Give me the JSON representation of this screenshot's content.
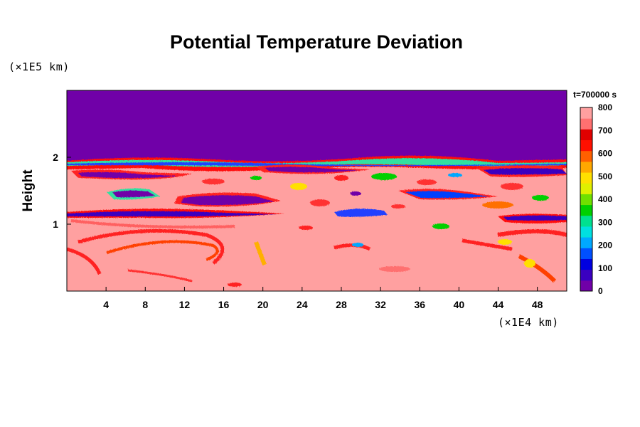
{
  "title": "Potential Temperature Deviation",
  "y_unit": "(×1E5 km)",
  "x_unit": "(×1E4 km)",
  "ylabel": "Height",
  "timestamp": "t=700000 s",
  "chart_data": {
    "type": "heatmap",
    "title": "Potential Temperature Deviation",
    "xlabel": "",
    "ylabel": "Height",
    "x_unit": "×1E4 km",
    "y_unit": "×1E5 km",
    "xlim": [
      0,
      51
    ],
    "ylim": [
      0,
      3
    ],
    "x_ticks": [
      4,
      8,
      12,
      16,
      20,
      24,
      28,
      32,
      36,
      40,
      44,
      48
    ],
    "y_ticks": [
      1,
      2
    ],
    "colorbar": {
      "min": 0,
      "max": 800,
      "ticks": [
        0,
        100,
        200,
        300,
        400,
        500,
        600,
        700,
        800
      ],
      "colors": [
        "#7000a8",
        "#3a00c0",
        "#0000e0",
        "#0050ff",
        "#00a8ff",
        "#00e0e0",
        "#00e090",
        "#00d000",
        "#70e000",
        "#e0f000",
        "#ffe000",
        "#ffa800",
        "#ff6000",
        "#ff1000",
        "#e00000",
        "#ff7070",
        "#ffa0a0"
      ]
    },
    "regions": [
      {
        "description": "upper layer, uniform minimum",
        "y_range": [
          1.92,
          3.0
        ],
        "value": 0
      },
      {
        "description": "middle layer, background near maximum with scattered low-value bands",
        "y_range": [
          1.0,
          1.92
        ],
        "value": 800
      },
      {
        "description": "lower layer, mostly maximum with red eddies",
        "y_range": [
          0,
          1.0
        ],
        "value": 800
      }
    ]
  }
}
